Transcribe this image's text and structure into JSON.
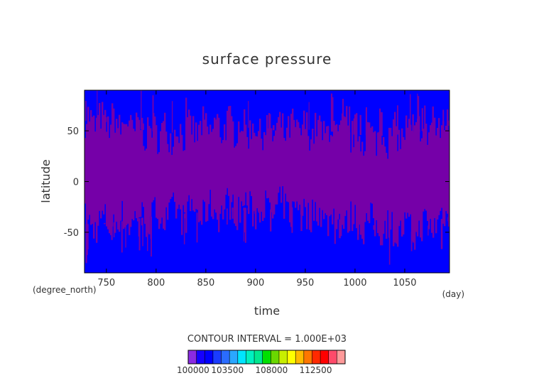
{
  "chart_data": {
    "type": "heatmap",
    "title": "surface pressure",
    "xlabel": "time",
    "ylabel": "latitude",
    "x_unit": "(day)",
    "y_unit": "(degree_north)",
    "xlim": [
      728,
      1095
    ],
    "ylim": [
      -90,
      90
    ],
    "x_ticks": [
      750,
      800,
      850,
      900,
      950,
      1000,
      1050
    ],
    "y_ticks": [
      -50,
      0,
      50
    ],
    "grid": false,
    "contour_interval_text": "CONTOUR INTERVAL = 1.000E+03",
    "colorbar": {
      "tick_labels": [
        "100000",
        "103500",
        "108000",
        "112500"
      ],
      "tick_values": [
        100000,
        103500,
        108000,
        112500
      ],
      "range": [
        99500,
        115500
      ],
      "colors": [
        "#8a2be2",
        "#1500ff",
        "#0000ff",
        "#1a3cff",
        "#2a6cff",
        "#2aa7ff",
        "#00e5ff",
        "#00f0c0",
        "#00e890",
        "#00e000",
        "#6ad800",
        "#c8ee00",
        "#ffff00",
        "#ffbb00",
        "#ff7700",
        "#ff2a00",
        "#ff0000",
        "#ff4a6a",
        "#ff9a9a"
      ]
    },
    "series": [
      {
        "name": "",
        "x": [
          730,
          760,
          790,
          820,
          850,
          880,
          910,
          940,
          970,
          1000,
          1030,
          1060,
          1090
        ],
        "north_edge_lat": [
          60,
          58,
          50,
          48,
          52,
          55,
          50,
          52,
          50,
          46,
          45,
          48,
          55
        ],
        "south_edge_lat": [
          -42,
          -40,
          -35,
          -32,
          -30,
          -25,
          -28,
          -25,
          -35,
          -40,
          -45,
          -50,
          -35
        ]
      }
    ],
    "field_colors": {
      "low": "#0000ff",
      "high": "#7500a8"
    }
  }
}
